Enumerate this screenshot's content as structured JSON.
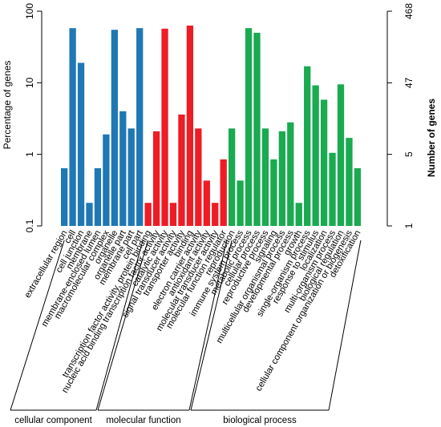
{
  "chart_data": {
    "type": "bar",
    "y_scale": "log",
    "ylim": [
      0.1,
      100
    ],
    "ylabel": "Percentage of genes",
    "ylabel_right": "Number of genes",
    "yticks_left": [
      "100",
      "10",
      "1",
      "0.1"
    ],
    "yticks_right": [
      "468",
      "47",
      "5",
      "1"
    ],
    "grid": false,
    "colors": {
      "cellular component": "#1f78b4",
      "molecular function": "#ee1c25",
      "biological process": "#1aaa50"
    },
    "groups": [
      {
        "name": "cellular component",
        "categories": [
          "extracellular region",
          "cell",
          "cell junction",
          "membrane",
          "membrane-enclosed lumen",
          "macromolecular complex",
          "organelle",
          "organelle part",
          "membrane part",
          "cell part"
        ],
        "values": [
          0.64,
          58,
          19,
          0.21,
          0.64,
          1.9,
          55,
          4,
          2.3,
          58
        ]
      },
      {
        "name": "molecular function",
        "categories": [
          "transcription factor activity, protein binding",
          "nucleic acid binding transcription factor activity",
          "catalytic activity",
          "signal transducer activity",
          "transporter activity",
          "binding",
          "electron carrier activity",
          "antioxidant activity",
          "molecular transducer activity",
          "molecular function regulator"
        ],
        "values": [
          0.21,
          2.1,
          57,
          0.21,
          3.6,
          63,
          2.3,
          0.43,
          0.21,
          0.85
        ]
      },
      {
        "name": "biological process",
        "categories": [
          "reproduction",
          "immune system process",
          "metabolic process",
          "cellular process",
          "reproductive process",
          "signaling",
          "multicellular organismal process",
          "developmental process",
          "growth",
          "single-organism process",
          "response to stimulus",
          "localization",
          "multi-organism process",
          "biological regulation",
          "cellular component organization or biogenesis",
          "detoxification"
        ],
        "values": [
          2.3,
          0.43,
          58,
          50,
          2.3,
          0.85,
          2.1,
          2.8,
          0.21,
          17,
          9.2,
          5.8,
          1.05,
          9.5,
          1.7,
          0.64
        ]
      }
    ]
  }
}
